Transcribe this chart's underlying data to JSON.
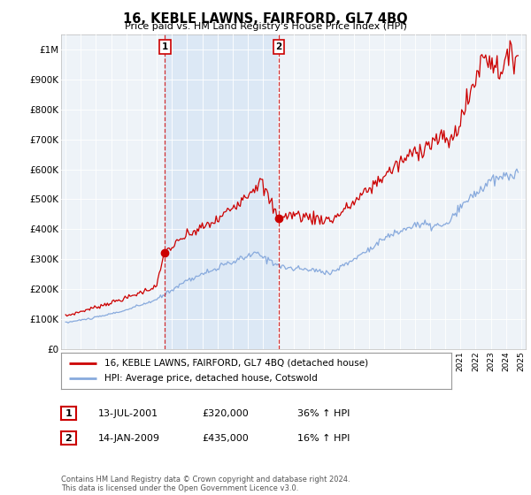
{
  "title": "16, KEBLE LAWNS, FAIRFORD, GL7 4BQ",
  "subtitle": "Price paid vs. HM Land Registry's House Price Index (HPI)",
  "legend_line1": "16, KEBLE LAWNS, FAIRFORD, GL7 4BQ (detached house)",
  "legend_line2": "HPI: Average price, detached house, Cotswold",
  "annotation1_date": "13-JUL-2001",
  "annotation1_price": "£320,000",
  "annotation1_hpi": "36% ↑ HPI",
  "annotation2_date": "14-JAN-2009",
  "annotation2_price": "£435,000",
  "annotation2_hpi": "16% ↑ HPI",
  "footer": "Contains HM Land Registry data © Crown copyright and database right 2024.\nThis data is licensed under the Open Government Licence v3.0.",
  "line1_color": "#cc0000",
  "line2_color": "#88aadd",
  "shade_color": "#dce8f5",
  "background_color": "#ffffff",
  "plot_bg_color": "#eef3f8",
  "grid_color": "#ffffff",
  "ylim": [
    0,
    1050000
  ],
  "yticks": [
    0,
    100000,
    200000,
    300000,
    400000,
    500000,
    600000,
    700000,
    800000,
    900000,
    1000000
  ],
  "ytick_labels": [
    "£0",
    "£100K",
    "£200K",
    "£300K",
    "£400K",
    "£500K",
    "£600K",
    "£700K",
    "£800K",
    "£900K",
    "£1M"
  ],
  "sale1_x": 2001.54,
  "sale1_y": 320000,
  "sale2_x": 2009.04,
  "sale2_y": 435000,
  "xlim_left": 1994.7,
  "xlim_right": 2025.3
}
